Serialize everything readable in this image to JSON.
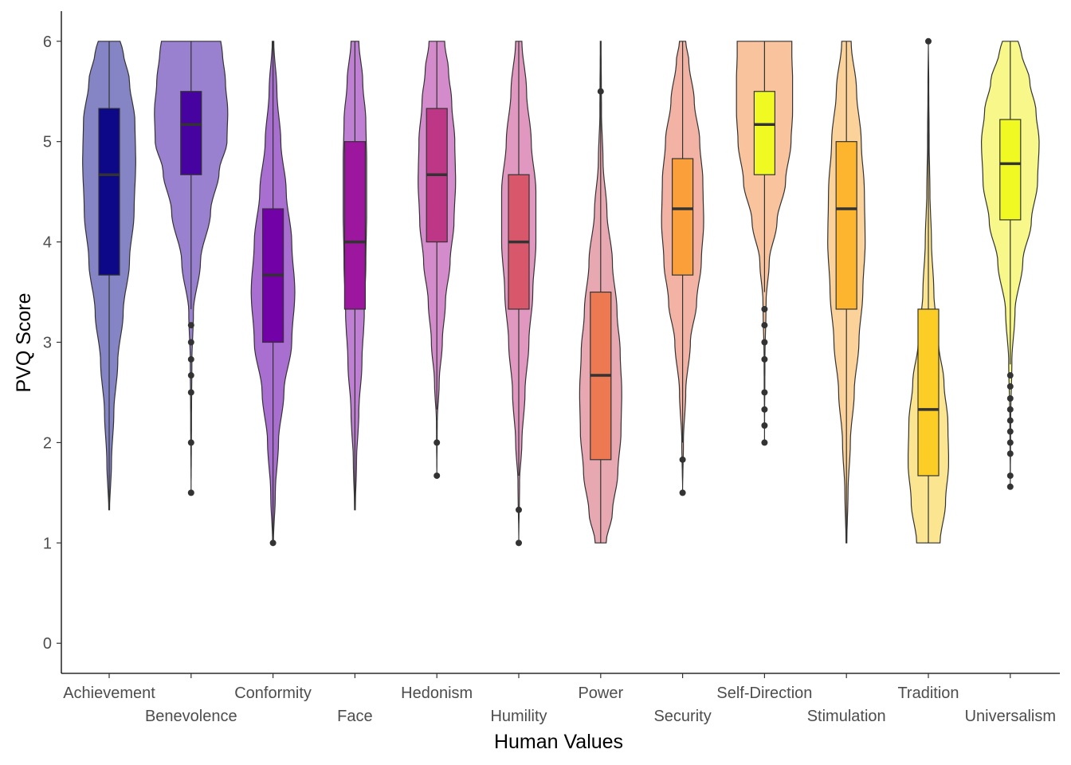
{
  "chart_data": {
    "type": "violin",
    "xlabel": "Human Values",
    "ylabel": "PVQ Score",
    "ylim": [
      -0.3,
      6.3
    ],
    "yticks": [
      0,
      1,
      2,
      3,
      4,
      5,
      6
    ],
    "grid": false,
    "legend": "none",
    "categories": [
      "Achievement",
      "Benevolence",
      "Conformity",
      "Face",
      "Hedonism",
      "Humility",
      "Power",
      "Security",
      "Self-Direction",
      "Stimulation",
      "Tradition",
      "Universalism"
    ],
    "groups": [
      {
        "name": "Achievement",
        "violin_color": "#8584c4",
        "box_color": "#0d0887",
        "box": {
          "q1": 3.67,
          "median": 4.67,
          "q3": 5.33,
          "whisker_low": 1.33,
          "whisker_high": 6.0
        },
        "outliers": [],
        "density": [
          [
            1.33,
            0.005
          ],
          [
            1.8,
            0.03
          ],
          [
            2.3,
            0.06
          ],
          [
            2.8,
            0.11
          ],
          [
            3.3,
            0.18
          ],
          [
            3.8,
            0.26
          ],
          [
            4.3,
            0.32
          ],
          [
            4.8,
            0.34
          ],
          [
            5.2,
            0.33
          ],
          [
            5.6,
            0.26
          ],
          [
            5.9,
            0.18
          ],
          [
            6.0,
            0.14
          ]
        ]
      },
      {
        "name": "Benevolence",
        "violin_color": "#9a81d0",
        "box_color": "#47039f",
        "box": {
          "q1": 4.67,
          "median": 5.17,
          "q3": 5.5,
          "whisker_low": 3.33,
          "whisker_high": 6.0
        },
        "outliers": [
          3.17,
          3.0,
          2.83,
          2.67,
          2.5,
          2.0,
          1.5
        ],
        "density": [
          [
            1.5,
            0.0
          ],
          [
            2.2,
            0.005
          ],
          [
            2.8,
            0.01
          ],
          [
            3.3,
            0.03
          ],
          [
            3.8,
            0.12
          ],
          [
            4.3,
            0.25
          ],
          [
            4.7,
            0.36
          ],
          [
            5.0,
            0.46
          ],
          [
            5.3,
            0.47
          ],
          [
            5.6,
            0.44
          ],
          [
            5.9,
            0.4
          ],
          [
            6.0,
            0.38
          ]
        ]
      },
      {
        "name": "Conformity",
        "violin_color": "#a86fd1",
        "box_color": "#7301a8",
        "box": {
          "q1": 3.0,
          "median": 3.67,
          "q3": 4.33,
          "whisker_low": 1.0,
          "whisker_high": 6.0
        },
        "outliers": [
          1.0
        ],
        "density": [
          [
            1.0,
            0.005
          ],
          [
            1.5,
            0.03
          ],
          [
            2.0,
            0.07
          ],
          [
            2.5,
            0.14
          ],
          [
            3.0,
            0.24
          ],
          [
            3.5,
            0.28
          ],
          [
            4.0,
            0.24
          ],
          [
            4.5,
            0.17
          ],
          [
            5.0,
            0.1
          ],
          [
            5.5,
            0.05
          ],
          [
            6.0,
            0.01
          ]
        ]
      },
      {
        "name": "Face",
        "violin_color": "#bf7fd3",
        "box_color": "#9c179e",
        "box": {
          "q1": 3.33,
          "median": 4.0,
          "q3": 5.0,
          "whisker_low": 1.33,
          "whisker_high": 6.0
        },
        "outliers": [],
        "density": [
          [
            1.33,
            0.005
          ],
          [
            1.8,
            0.02
          ],
          [
            2.3,
            0.05
          ],
          [
            2.8,
            0.09
          ],
          [
            3.3,
            0.12
          ],
          [
            3.8,
            0.14
          ],
          [
            4.3,
            0.15
          ],
          [
            4.8,
            0.15
          ],
          [
            5.2,
            0.14
          ],
          [
            5.6,
            0.1
          ],
          [
            6.0,
            0.05
          ]
        ]
      },
      {
        "name": "Hedonism",
        "violin_color": "#d38bcb",
        "box_color": "#bd3786",
        "box": {
          "q1": 4.0,
          "median": 4.67,
          "q3": 5.33,
          "whisker_low": 2.33,
          "whisker_high": 6.0
        },
        "outliers": [
          2.0,
          1.67
        ],
        "density": [
          [
            1.67,
            0.0
          ],
          [
            2.2,
            0.005
          ],
          [
            2.6,
            0.03
          ],
          [
            3.0,
            0.07
          ],
          [
            3.4,
            0.11
          ],
          [
            3.8,
            0.17
          ],
          [
            4.2,
            0.22
          ],
          [
            4.6,
            0.24
          ],
          [
            5.0,
            0.23
          ],
          [
            5.4,
            0.19
          ],
          [
            5.7,
            0.15
          ],
          [
            6.0,
            0.1
          ]
        ]
      },
      {
        "name": "Humility",
        "violin_color": "#e198c0",
        "box_color": "#d8576b",
        "box": {
          "q1": 3.33,
          "median": 4.0,
          "q3": 4.67,
          "whisker_low": 1.67,
          "whisker_high": 6.0
        },
        "outliers": [
          1.33,
          1.0
        ],
        "density": [
          [
            1.0,
            0.0
          ],
          [
            1.6,
            0.01
          ],
          [
            2.0,
            0.04
          ],
          [
            2.5,
            0.08
          ],
          [
            3.0,
            0.13
          ],
          [
            3.5,
            0.18
          ],
          [
            4.0,
            0.22
          ],
          [
            4.5,
            0.22
          ],
          [
            5.0,
            0.16
          ],
          [
            5.5,
            0.1
          ],
          [
            6.0,
            0.04
          ]
        ]
      },
      {
        "name": "Power",
        "violin_color": "#e8a8b2",
        "box_color": "#ed7953",
        "box": {
          "q1": 1.83,
          "median": 2.67,
          "q3": 3.5,
          "whisker_low": 1.0,
          "whisker_high": 6.0
        },
        "outliers": [
          5.5
        ],
        "density": [
          [
            1.0,
            0.07
          ],
          [
            1.3,
            0.15
          ],
          [
            1.7,
            0.22
          ],
          [
            2.1,
            0.26
          ],
          [
            2.5,
            0.27
          ],
          [
            2.9,
            0.25
          ],
          [
            3.3,
            0.21
          ],
          [
            3.8,
            0.15
          ],
          [
            4.3,
            0.08
          ],
          [
            4.8,
            0.03
          ],
          [
            5.3,
            0.01
          ],
          [
            6.0,
            0.005
          ]
        ]
      },
      {
        "name": "Security",
        "violin_color": "#f2b3a4",
        "box_color": "#fb9f3a",
        "box": {
          "q1": 3.67,
          "median": 4.33,
          "q3": 4.83,
          "whisker_low": 2.0,
          "whisker_high": 6.0
        },
        "outliers": [
          1.83,
          1.5
        ],
        "density": [
          [
            1.5,
            0.0
          ],
          [
            2.0,
            0.01
          ],
          [
            2.5,
            0.04
          ],
          [
            3.0,
            0.1
          ],
          [
            3.4,
            0.18
          ],
          [
            3.8,
            0.24
          ],
          [
            4.2,
            0.27
          ],
          [
            4.6,
            0.26
          ],
          [
            5.0,
            0.22
          ],
          [
            5.4,
            0.15
          ],
          [
            5.8,
            0.08
          ],
          [
            6.0,
            0.04
          ]
        ]
      },
      {
        "name": "Self-Direction",
        "violin_color": "#f8c39d",
        "box_color": "#f0f921",
        "box": {
          "q1": 4.67,
          "median": 5.17,
          "q3": 5.5,
          "whisker_low": 3.5,
          "whisker_high": 6.0
        },
        "outliers": [
          3.33,
          3.17,
          3.0,
          2.83,
          2.5,
          2.33,
          2.17,
          2.0
        ],
        "density": [
          [
            2.0,
            0.0
          ],
          [
            2.8,
            0.005
          ],
          [
            3.4,
            0.02
          ],
          [
            3.8,
            0.06
          ],
          [
            4.2,
            0.16
          ],
          [
            4.6,
            0.27
          ],
          [
            5.0,
            0.34
          ],
          [
            5.3,
            0.36
          ],
          [
            5.6,
            0.36
          ],
          [
            5.9,
            0.35
          ],
          [
            6.0,
            0.35
          ]
        ]
      },
      {
        "name": "Stimulation",
        "violin_color": "#fbd39a",
        "box_color": "#fdb42f",
        "box": {
          "q1": 3.33,
          "median": 4.33,
          "q3": 5.0,
          "whisker_low": 1.0,
          "whisker_high": 6.0
        },
        "outliers": [],
        "density": [
          [
            1.0,
            0.005
          ],
          [
            1.5,
            0.02
          ],
          [
            2.0,
            0.05
          ],
          [
            2.5,
            0.1
          ],
          [
            3.0,
            0.16
          ],
          [
            3.5,
            0.21
          ],
          [
            4.0,
            0.24
          ],
          [
            4.5,
            0.23
          ],
          [
            5.0,
            0.19
          ],
          [
            5.5,
            0.13
          ],
          [
            6.0,
            0.06
          ]
        ]
      },
      {
        "name": "Tradition",
        "violin_color": "#fbe590",
        "box_color": "#fcce25",
        "box": {
          "q1": 1.67,
          "median": 2.33,
          "q3": 3.33,
          "whisker_low": 1.0,
          "whisker_high": 5.67
        },
        "outliers": [
          6.0
        ],
        "density": [
          [
            1.0,
            0.15
          ],
          [
            1.4,
            0.22
          ],
          [
            1.8,
            0.26
          ],
          [
            2.2,
            0.25
          ],
          [
            2.6,
            0.2
          ],
          [
            3.0,
            0.13
          ],
          [
            3.5,
            0.07
          ],
          [
            4.0,
            0.04
          ],
          [
            4.5,
            0.02
          ],
          [
            5.0,
            0.01
          ],
          [
            5.6,
            0.005
          ],
          [
            6.0,
            0.0
          ]
        ]
      },
      {
        "name": "Universalism",
        "violin_color": "#f7f889",
        "box_color": "#f0f921",
        "box": {
          "q1": 4.22,
          "median": 4.78,
          "q3": 5.22,
          "whisker_low": 2.78,
          "whisker_high": 6.0
        },
        "outliers": [
          2.67,
          2.56,
          2.44,
          2.33,
          2.22,
          2.11,
          2.0,
          1.89,
          1.67,
          1.56
        ],
        "density": [
          [
            1.56,
            0.0
          ],
          [
            2.2,
            0.005
          ],
          [
            2.8,
            0.02
          ],
          [
            3.3,
            0.06
          ],
          [
            3.8,
            0.16
          ],
          [
            4.2,
            0.27
          ],
          [
            4.6,
            0.35
          ],
          [
            5.0,
            0.37
          ],
          [
            5.3,
            0.33
          ],
          [
            5.6,
            0.25
          ],
          [
            5.9,
            0.14
          ],
          [
            6.0,
            0.1
          ]
        ]
      }
    ]
  }
}
